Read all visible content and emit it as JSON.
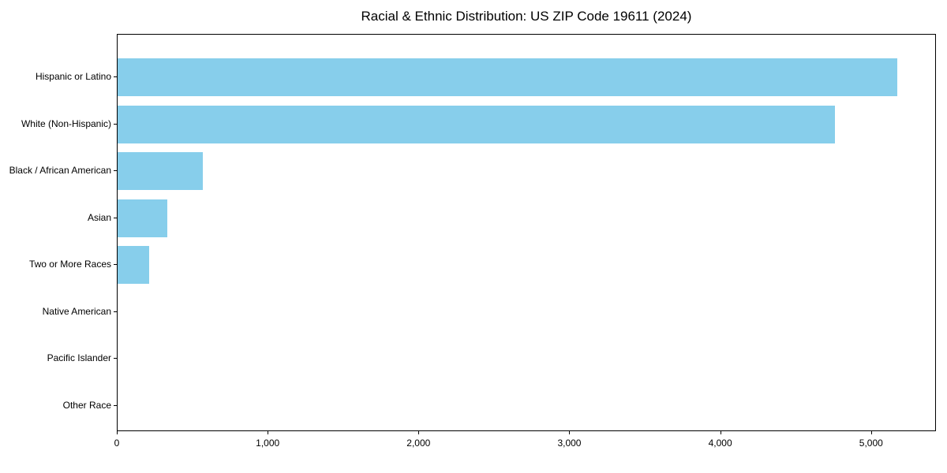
{
  "page": {
    "title": "Racial & Ethnic Distribution: US ZIP Code 19611 (2024)"
  },
  "chart_data": {
    "type": "bar",
    "orientation": "horizontal",
    "title": "Racial & Ethnic Distribution: US ZIP Code 19611 (2024)",
    "categories": [
      "Hispanic or Latino",
      "White (Non-Hispanic)",
      "Black / African American",
      "Asian",
      "Two or More Races",
      "Native American",
      "Pacific Islander",
      "Other Race"
    ],
    "values": [
      5170,
      4755,
      565,
      330,
      210,
      0,
      0,
      0
    ],
    "xlabel": "",
    "ylabel": "",
    "xlim": [
      0,
      5430
    ],
    "x_ticks": [
      0,
      1000,
      2000,
      3000,
      4000,
      5000
    ],
    "x_tick_labels": [
      "0",
      "1,000",
      "2,000",
      "3,000",
      "4,000",
      "5,000"
    ],
    "bar_color": "#87CEEB",
    "axis_color": "#000000",
    "background_color": "#ffffff",
    "grid": false,
    "legend": null
  }
}
